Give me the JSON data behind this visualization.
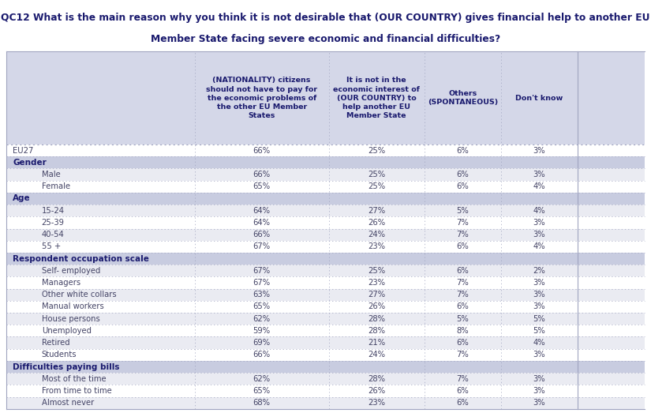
{
  "title_line1": "QC12 What is the main reason why you think it is not desirable that (OUR COUNTRY) gives financial help to another EU",
  "title_line2": "Member State facing severe economic and financial difficulties?",
  "col_headers": [
    "(NATIONALITY) citizens\nshould not have to pay for\nthe economic problems of\nthe other EU Member\nStates",
    "It is not in the\neconomic interest of\n(OUR COUNTRY) to\nhelp another EU\nMember State",
    "Others\n(SPONTANEOUS)",
    "Don't know"
  ],
  "all_rows": [
    {
      "label": "EU27",
      "values": [
        "66%",
        "25%",
        "6%",
        "3%"
      ],
      "is_section": false,
      "indent": false
    },
    {
      "label": "Gender",
      "values": null,
      "is_section": true,
      "indent": false
    },
    {
      "label": "Male",
      "values": [
        "66%",
        "25%",
        "6%",
        "3%"
      ],
      "is_section": false,
      "indent": true
    },
    {
      "label": "Female",
      "values": [
        "65%",
        "25%",
        "6%",
        "4%"
      ],
      "is_section": false,
      "indent": true
    },
    {
      "label": "Age",
      "values": null,
      "is_section": true,
      "indent": false
    },
    {
      "label": "15-24",
      "values": [
        "64%",
        "27%",
        "5%",
        "4%"
      ],
      "is_section": false,
      "indent": true
    },
    {
      "label": "25-39",
      "values": [
        "64%",
        "26%",
        "7%",
        "3%"
      ],
      "is_section": false,
      "indent": true
    },
    {
      "label": "40-54",
      "values": [
        "66%",
        "24%",
        "7%",
        "3%"
      ],
      "is_section": false,
      "indent": true
    },
    {
      "label": "55 +",
      "values": [
        "67%",
        "23%",
        "6%",
        "4%"
      ],
      "is_section": false,
      "indent": true
    },
    {
      "label": "Respondent occupation scale",
      "values": null,
      "is_section": true,
      "indent": false
    },
    {
      "label": "Self- employed",
      "values": [
        "67%",
        "25%",
        "6%",
        "2%"
      ],
      "is_section": false,
      "indent": true
    },
    {
      "label": "Managers",
      "values": [
        "67%",
        "23%",
        "7%",
        "3%"
      ],
      "is_section": false,
      "indent": true
    },
    {
      "label": "Other white collars",
      "values": [
        "63%",
        "27%",
        "7%",
        "3%"
      ],
      "is_section": false,
      "indent": true
    },
    {
      "label": "Manual workers",
      "values": [
        "65%",
        "26%",
        "6%",
        "3%"
      ],
      "is_section": false,
      "indent": true
    },
    {
      "label": "House persons",
      "values": [
        "62%",
        "28%",
        "5%",
        "5%"
      ],
      "is_section": false,
      "indent": true
    },
    {
      "label": "Unemployed",
      "values": [
        "59%",
        "28%",
        "8%",
        "5%"
      ],
      "is_section": false,
      "indent": true
    },
    {
      "label": "Retired",
      "values": [
        "69%",
        "21%",
        "6%",
        "4%"
      ],
      "is_section": false,
      "indent": true
    },
    {
      "label": "Students",
      "values": [
        "66%",
        "24%",
        "7%",
        "3%"
      ],
      "is_section": false,
      "indent": true
    },
    {
      "label": "Difficulties paying bills",
      "values": null,
      "is_section": true,
      "indent": false
    },
    {
      "label": "Most of the time",
      "values": [
        "62%",
        "28%",
        "7%",
        "3%"
      ],
      "is_section": false,
      "indent": true
    },
    {
      "label": "From time to time",
      "values": [
        "65%",
        "26%",
        "6%",
        "3%"
      ],
      "is_section": false,
      "indent": true
    },
    {
      "label": "Almost never",
      "values": [
        "68%",
        "23%",
        "6%",
        "3%"
      ],
      "is_section": false,
      "indent": true
    }
  ],
  "title_bg": "#ffffff",
  "header_bg": "#d4d7e8",
  "section_bg": "#c8cce0",
  "data_bg_a": "#ffffff",
  "data_bg_b": "#eaebf2",
  "border_color": "#a0a4c0",
  "title_color": "#1a1a6e",
  "header_text_color": "#1a1a6e",
  "section_text_color": "#1a1a6e",
  "data_text_color": "#444466",
  "col_splits": [
    0.0,
    0.295,
    0.505,
    0.655,
    0.775,
    0.895
  ],
  "title_fontsize": 8.8,
  "header_fontsize": 6.8,
  "row_fontsize": 7.2,
  "section_fontsize": 7.5
}
